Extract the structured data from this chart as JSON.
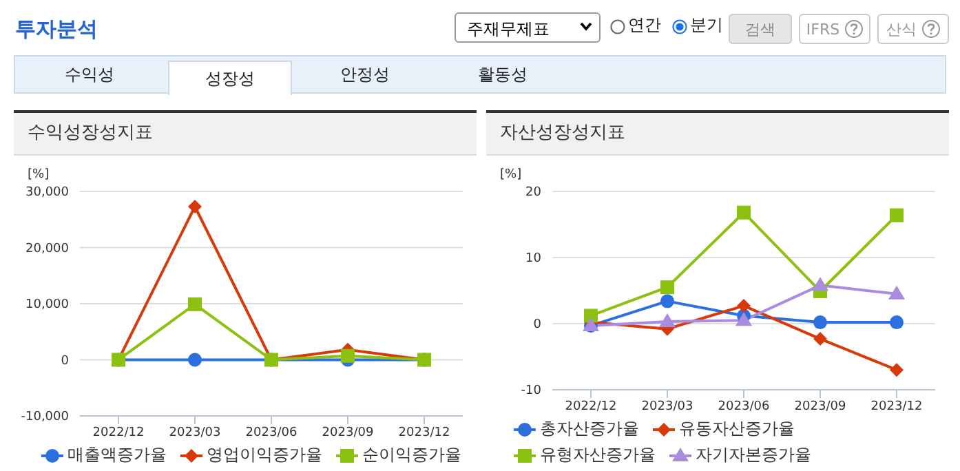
{
  "chart_data": [
    {
      "type": "other",
      "title": "투자분석",
      "annotations": [
        "주재무제표",
        "연간",
        "분기",
        "검색",
        "IFRS",
        "산식",
        "수익성",
        "성장성",
        "안정성",
        "활동성"
      ]
    },
    {
      "type": "line",
      "title": "수익성장성지표",
      "ylabel": "[%]",
      "categories": [
        "2022/12",
        "2023/03",
        "2023/06",
        "2023/09",
        "2023/12"
      ],
      "ylim": [
        -10000,
        30000
      ],
      "yticks": [
        {
          "value": -10000,
          "label": "-10,000"
        },
        0,
        {
          "value": 10000,
          "label": "10,000"
        },
        {
          "value": 20000,
          "label": "20,000"
        },
        {
          "value": 30000,
          "label": "30,000"
        }
      ],
      "grid": "y",
      "legend": "bottom",
      "line_style": "solid",
      "series": [
        {
          "name": "매출액증가율",
          "color": "#2b6fe0",
          "marker": "circle",
          "values": [
            0,
            0,
            0,
            0,
            0
          ]
        },
        {
          "name": "영업이익증가율",
          "color": "#d63a0a",
          "marker": "diamond",
          "values": [
            0,
            27300,
            0,
            1800,
            0
          ]
        },
        {
          "name": "순이익증가율",
          "color": "#8cc011",
          "marker": "square",
          "values": [
            0,
            9900,
            0,
            700,
            0
          ]
        }
      ]
    },
    {
      "type": "line",
      "title": "자산성장성지표",
      "ylabel": "[%]",
      "categories": [
        "2022/12",
        "2023/03",
        "2023/06",
        "2023/09",
        "2023/12"
      ],
      "ylim": [
        -10,
        20
      ],
      "yticks": [
        -10,
        0,
        10,
        20
      ],
      "grid": "y",
      "legend": "bottom",
      "line_style": "solid",
      "series": [
        {
          "name": "총자산증가율",
          "color": "#2b6fe0",
          "marker": "circle",
          "values": [
            -0.3,
            3.4,
            1.2,
            0.2,
            0.2
          ]
        },
        {
          "name": "유동자산증가율",
          "color": "#d63a0a",
          "marker": "diamond",
          "values": [
            0.2,
            -0.8,
            2.7,
            -2.3,
            -7.0
          ]
        },
        {
          "name": "유형자산증가율",
          "color": "#8cc011",
          "marker": "square",
          "values": [
            1.2,
            5.5,
            16.8,
            4.9,
            16.4
          ]
        },
        {
          "name": "자기자본증가율",
          "color": "#a98be0",
          "marker": "triangle",
          "values": [
            -0.3,
            0.3,
            0.5,
            5.8,
            4.5
          ]
        }
      ]
    }
  ]
}
